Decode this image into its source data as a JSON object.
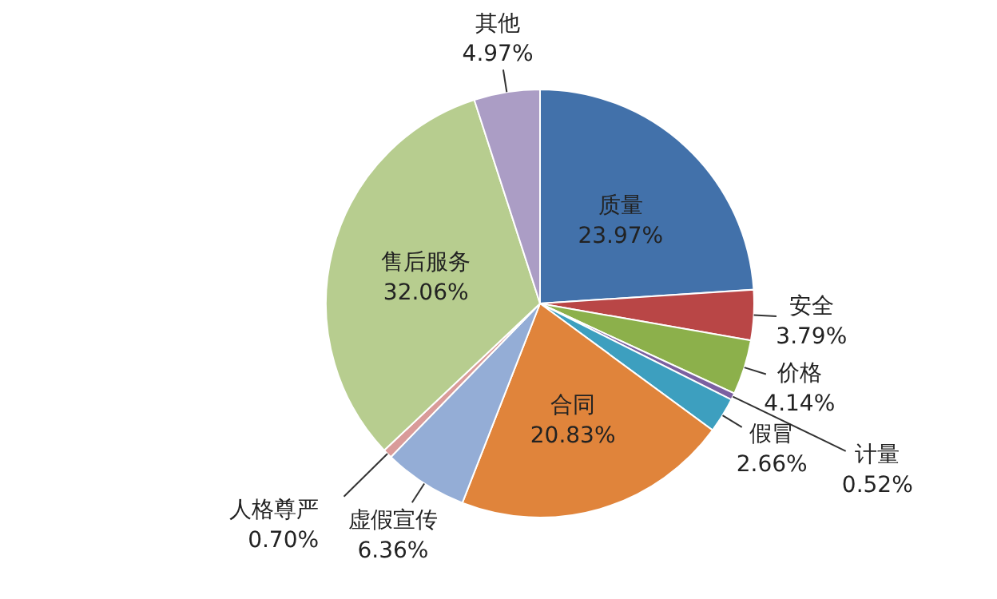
{
  "chart_data": {
    "type": "pie",
    "categories": [
      "质量",
      "安全",
      "价格",
      "计量",
      "假冒",
      "合同",
      "虚假宣传",
      "人格尊严",
      "售后服务",
      "其他"
    ],
    "values": [
      23.97,
      3.79,
      4.14,
      0.52,
      2.66,
      20.83,
      6.36,
      0.7,
      32.06,
      4.97
    ],
    "colors": [
      "#4271aa",
      "#b94646",
      "#8cb04b",
      "#7b60a1",
      "#3d9fbf",
      "#e0843b",
      "#94add6",
      "#d99b99",
      "#b7cd8f",
      "#ab9dc5"
    ],
    "value_labels": [
      "23.97%",
      "3.79%",
      "4.14%",
      "0.52%",
      "2.66%",
      "20.83%",
      "6.36%",
      "0.70%",
      "32.06%",
      "4.97%"
    ],
    "legend": false
  }
}
